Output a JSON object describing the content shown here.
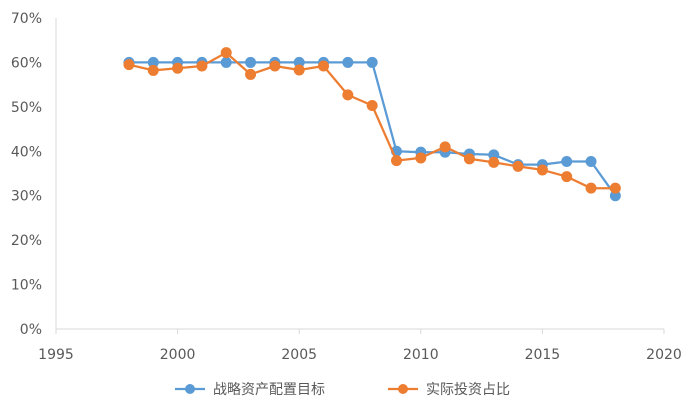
{
  "chart_data": {
    "type": "line",
    "xlim": [
      1995,
      2020
    ],
    "ylim": [
      0,
      70
    ],
    "x_ticks": [
      1995,
      2000,
      2005,
      2010,
      2015,
      2020
    ],
    "x_tick_labels": [
      "1995",
      "2000",
      "2005",
      "2010",
      "2015",
      "2020"
    ],
    "y_ticks": [
      0,
      10,
      20,
      30,
      40,
      50,
      60,
      70
    ],
    "y_tick_labels": [
      "0%",
      "10%",
      "20%",
      "30%",
      "40%",
      "50%",
      "60%",
      "70%"
    ],
    "grid": false,
    "legend_position": "bottom",
    "series": [
      {
        "name": "战略资产配置目标",
        "color": "#5B9BD5",
        "x": [
          1998,
          1999,
          2000,
          2001,
          2002,
          2003,
          2004,
          2005,
          2006,
          2007,
          2008,
          2009,
          2010,
          2011,
          2012,
          2013,
          2014,
          2015,
          2016,
          2017,
          2018
        ],
        "y": [
          60,
          60,
          60,
          60,
          60,
          60,
          60,
          60,
          60,
          60,
          60,
          40,
          39.8,
          39.8,
          39.4,
          39.2,
          37,
          37,
          37.7,
          37.7,
          30
        ]
      },
      {
        "name": "实际投资占比",
        "color": "#ED7D31",
        "x": [
          1998,
          1999,
          2000,
          2001,
          2002,
          2003,
          2004,
          2005,
          2006,
          2007,
          2008,
          2009,
          2010,
          2011,
          2012,
          2013,
          2014,
          2015,
          2016,
          2017,
          2018
        ],
        "y": [
          59.5,
          58.2,
          58.7,
          59.2,
          62.2,
          57.3,
          59.2,
          58.3,
          59.2,
          52.7,
          50.3,
          37.9,
          38.5,
          41,
          38.3,
          37.5,
          36.6,
          35.8,
          34.3,
          31.7,
          31.7
        ]
      }
    ]
  }
}
